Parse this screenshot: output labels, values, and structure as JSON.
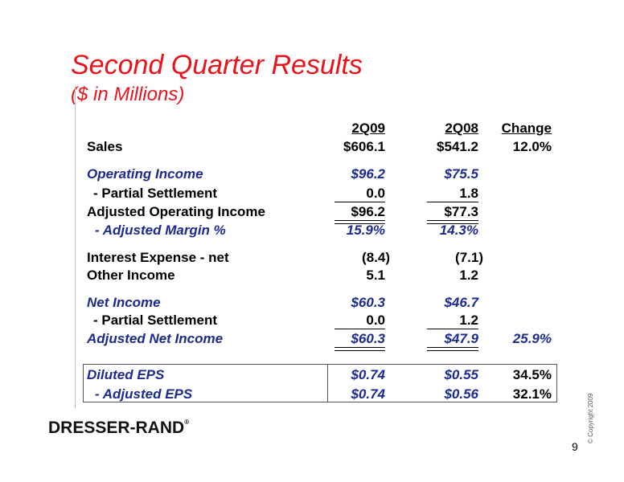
{
  "title": "Second Quarter Results",
  "subtitle": "($ in Millions)",
  "columns": [
    "2Q09",
    "2Q08",
    "Change"
  ],
  "rows": {
    "sales": {
      "label": "Sales",
      "v1": "$606.1",
      "v2": "$541.2",
      "v3": "12.0%"
    },
    "op_income": {
      "label": "Operating Income",
      "v1": "$96.2",
      "v2": "$75.5",
      "v3": ""
    },
    "partial1": {
      "label": "-  Partial Settlement",
      "v1": "0.0",
      "v2": "1.8",
      "v3": ""
    },
    "adj_op": {
      "label": "Adjusted Operating Income",
      "v1": "$96.2",
      "v2": "$77.3",
      "v3": ""
    },
    "adj_margin": {
      "label": "- Adjusted Margin %",
      "v1": "15.9%",
      "v2": "14.3%",
      "v3": ""
    },
    "interest": {
      "label": "Interest Expense - net",
      "v1": "(8.4)",
      "v2": "(7.1)",
      "v3": ""
    },
    "other": {
      "label": "Other Income",
      "v1": "5.1",
      "v2": "1.2",
      "v3": ""
    },
    "net_income": {
      "label": "Net Income",
      "v1": "$60.3",
      "v2": "$46.7",
      "v3": ""
    },
    "partial2": {
      "label": "-  Partial Settlement",
      "v1": "0.0",
      "v2": "1.2",
      "v3": ""
    },
    "adj_net": {
      "label": "Adjusted Net Income",
      "v1": "$60.3",
      "v2": "$47.9",
      "v3": "25.9%"
    },
    "diluted_eps": {
      "label": "Diluted EPS",
      "v1": "$0.74",
      "v2": "$0.55",
      "v3": "34.5%"
    },
    "adj_eps": {
      "label": "- Adjusted EPS",
      "v1": "$0.74",
      "v2": "$0.56",
      "v3": "32.1%"
    }
  },
  "logo_text": "DRESSER-RAND",
  "logo_reg": "®",
  "copyright": "© Copyright 2009",
  "page_number": "9",
  "colors": {
    "title": "#e8131b",
    "highlight": "#1b2a8e"
  }
}
